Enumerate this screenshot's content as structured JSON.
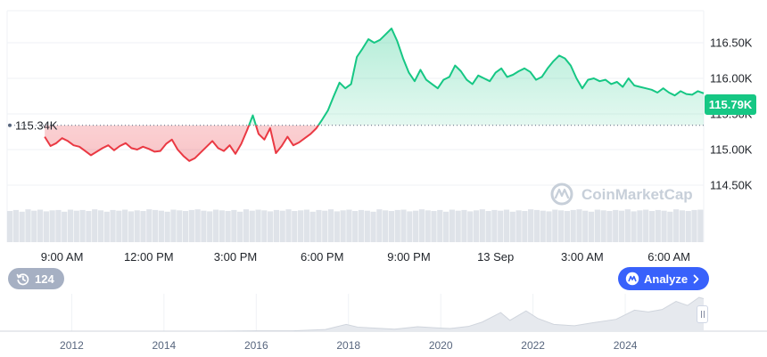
{
  "price_axis": {
    "labels": [
      "116.50K",
      "116.00K",
      "115.50K",
      "115.00K",
      "114.50K"
    ],
    "values": [
      116.5,
      116.0,
      115.5,
      115.0,
      114.5
    ]
  },
  "time_axis": {
    "labels": [
      "9:00 AM",
      "12:00 PM",
      "3:00 PM",
      "6:00 PM",
      "9:00 PM",
      "13 Sep",
      "3:00 AM",
      "6:00 AM"
    ],
    "hours": [
      9,
      12,
      15,
      18,
      21,
      24,
      27,
      30
    ]
  },
  "reference_price": {
    "label": "115.34K",
    "value": 115.34
  },
  "current_price": {
    "label": "115.79K",
    "value": 115.79
  },
  "counter_badge": {
    "icon": "history-icon",
    "label": "124"
  },
  "analyze_button": {
    "icon": "coinmarketcap-ai-icon",
    "label": "Analyze",
    "trailing_icon": "chevron-right-icon"
  },
  "watermark": {
    "icon": "coinmarketcap-logo-icon",
    "label": "CoinMarketCap"
  },
  "navigator": {
    "labels": [
      "2012",
      "2014",
      "2016",
      "2018",
      "2020",
      "2022",
      "2024"
    ],
    "years": [
      2012,
      2014,
      2016,
      2018,
      2020,
      2022,
      2024
    ],
    "handle_icon": "drag-handle-icon",
    "points": [
      [
        2010.6,
        0.0
      ],
      [
        2013.0,
        0.0
      ],
      [
        2015.0,
        0.0
      ],
      [
        2016.0,
        0.01
      ],
      [
        2016.8,
        0.01
      ],
      [
        2017.5,
        0.05
      ],
      [
        2017.95,
        0.2
      ],
      [
        2018.2,
        0.12
      ],
      [
        2018.6,
        0.09
      ],
      [
        2019.0,
        0.06
      ],
      [
        2019.5,
        0.13
      ],
      [
        2019.9,
        0.1
      ],
      [
        2020.2,
        0.08
      ],
      [
        2020.6,
        0.14
      ],
      [
        2020.9,
        0.27
      ],
      [
        2021.3,
        0.55
      ],
      [
        2021.5,
        0.32
      ],
      [
        2021.85,
        0.6
      ],
      [
        2022.1,
        0.38
      ],
      [
        2022.45,
        0.2
      ],
      [
        2022.9,
        0.16
      ],
      [
        2023.3,
        0.25
      ],
      [
        2023.8,
        0.35
      ],
      [
        2024.2,
        0.62
      ],
      [
        2024.5,
        0.57
      ],
      [
        2024.8,
        0.64
      ],
      [
        2025.1,
        0.88
      ],
      [
        2025.35,
        0.76
      ],
      [
        2025.6,
        1.0
      ],
      [
        2025.7,
        0.96
      ]
    ]
  },
  "colors": {
    "up": "#16c784",
    "down": "#ea3943",
    "accent": "#3861fb",
    "grid": "#eff2f5",
    "reference_line": "#58667e",
    "volume": "#dfe3e9",
    "navigator_fill": "#e6e9ee",
    "navigator_line": "#d0d5dd"
  },
  "chart_data": {
    "type": "area",
    "y_unit": "K",
    "ylim": [
      114.2,
      116.95
    ],
    "x_unit": "hours",
    "xlim": [
      7.1,
      31.2
    ],
    "baseline": 115.34,
    "grid": true,
    "x": [
      8.4,
      8.6,
      8.8,
      9.0,
      9.2,
      9.4,
      9.6,
      9.8,
      10.0,
      10.2,
      10.4,
      10.6,
      10.8,
      11.0,
      11.2,
      11.4,
      11.6,
      11.8,
      12.0,
      12.2,
      12.4,
      12.6,
      12.8,
      13.0,
      13.2,
      13.4,
      13.6,
      13.8,
      14.0,
      14.2,
      14.4,
      14.6,
      14.8,
      15.0,
      15.2,
      15.4,
      15.6,
      15.8,
      16.0,
      16.2,
      16.4,
      16.6,
      16.8,
      17.0,
      17.2,
      17.4,
      17.6,
      17.8,
      18.0,
      18.2,
      18.4,
      18.6,
      18.8,
      19.0,
      19.2,
      19.4,
      19.6,
      19.8,
      20.0,
      20.2,
      20.4,
      20.6,
      20.8,
      21.0,
      21.2,
      21.4,
      21.6,
      21.8,
      22.0,
      22.2,
      22.4,
      22.6,
      22.8,
      23.0,
      23.2,
      23.4,
      23.6,
      23.8,
      24.0,
      24.2,
      24.4,
      24.6,
      24.8,
      25.0,
      25.2,
      25.4,
      25.6,
      25.8,
      26.0,
      26.2,
      26.4,
      26.6,
      26.8,
      27.0,
      27.2,
      27.4,
      27.6,
      27.8,
      28.0,
      28.2,
      28.4,
      28.6,
      28.8,
      29.0,
      29.2,
      29.4,
      29.6,
      29.8,
      30.0,
      30.2,
      30.4,
      30.6,
      30.8,
      31.0,
      31.2
    ],
    "series": [
      {
        "values": [
          115.18,
          115.05,
          115.09,
          115.16,
          115.12,
          115.06,
          115.04,
          114.98,
          114.92,
          114.97,
          115.02,
          115.06,
          114.99,
          115.05,
          115.09,
          115.02,
          115.0,
          115.04,
          115.01,
          114.97,
          114.98,
          115.08,
          115.14,
          115.0,
          114.91,
          114.84,
          114.88,
          114.96,
          115.04,
          115.12,
          115.02,
          114.98,
          115.06,
          114.94,
          115.08,
          115.27,
          115.48,
          115.22,
          115.14,
          115.3,
          114.95,
          115.05,
          115.18,
          115.06,
          115.1,
          115.16,
          115.22,
          115.3,
          115.42,
          115.55,
          115.75,
          115.94,
          115.86,
          115.92,
          116.3,
          116.42,
          116.55,
          116.5,
          116.54,
          116.62,
          116.7,
          116.52,
          116.28,
          116.08,
          115.96,
          116.12,
          115.98,
          115.92,
          115.86,
          115.98,
          116.02,
          116.18,
          116.1,
          115.98,
          115.92,
          116.04,
          116.0,
          115.96,
          116.08,
          116.14,
          116.02,
          116.05,
          116.1,
          116.14,
          116.09,
          115.98,
          116.02,
          116.14,
          116.24,
          116.32,
          116.28,
          116.18,
          116.0,
          115.86,
          115.98,
          116.0,
          115.96,
          115.98,
          115.92,
          115.95,
          115.88,
          116.0,
          115.9,
          115.88,
          115.86,
          115.84,
          115.8,
          115.86,
          115.8,
          115.76,
          115.82,
          115.78,
          115.77,
          115.82,
          115.79
        ]
      }
    ],
    "volume": [
      0.92,
      0.95,
      0.9,
      0.97,
      0.93,
      0.96,
      0.91,
      0.94,
      0.95,
      0.9,
      0.96,
      0.93,
      0.95,
      0.92,
      0.97,
      0.94,
      0.9,
      0.95,
      0.93,
      0.96,
      0.91,
      0.94,
      0.92,
      0.97,
      0.95,
      0.93,
      0.9,
      0.96,
      0.94,
      0.92,
      0.95,
      0.97,
      0.93,
      0.91,
      0.96,
      0.94,
      0.92,
      0.95,
      0.9,
      0.97,
      0.93,
      0.96,
      0.94,
      0.91,
      0.95,
      0.93,
      0.97,
      0.92,
      0.94,
      0.96,
      0.9,
      0.95,
      0.93,
      0.97,
      0.91,
      0.94,
      0.96,
      0.92,
      0.95,
      0.93,
      0.9,
      0.97,
      0.94,
      0.92,
      0.95,
      0.96,
      0.91,
      0.93,
      0.97,
      0.94,
      0.92,
      0.95,
      0.9,
      0.96,
      0.93,
      0.95,
      0.91,
      0.94,
      0.97,
      0.92,
      0.95,
      0.93,
      0.96,
      0.9,
      0.94,
      0.92,
      0.97,
      0.95,
      0.93,
      0.91,
      0.96,
      0.94,
      0.92,
      0.95,
      0.97,
      0.93,
      0.9,
      0.96,
      0.94,
      0.92,
      0.95,
      0.93,
      0.97,
      0.91,
      0.94,
      0.96,
      0.92,
      0.95,
      0.93,
      0.9,
      0.97,
      0.94,
      0.92,
      0.95,
      0.96
    ]
  }
}
